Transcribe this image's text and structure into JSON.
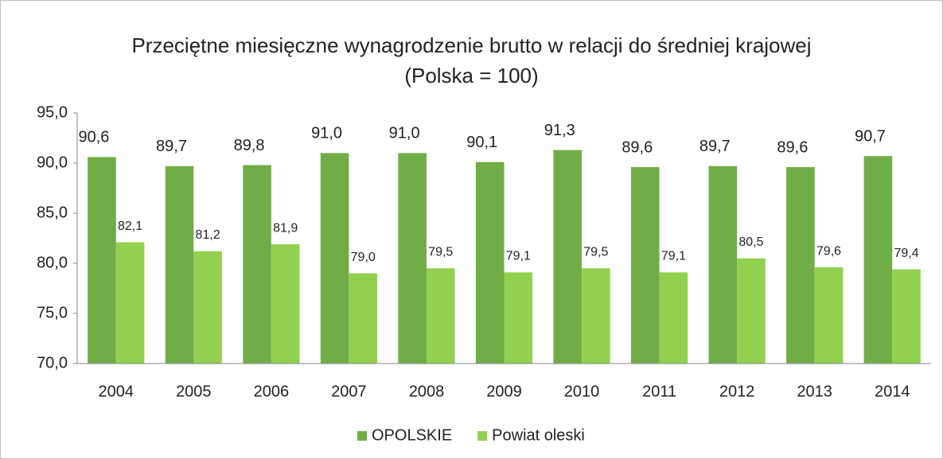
{
  "chart_data": {
    "type": "bar",
    "title": "Przeciętne miesięczne wynagrodzenie brutto w relacji do średniej krajowej (Polska = 100)",
    "categories": [
      "2004",
      "2005",
      "2006",
      "2007",
      "2008",
      "2009",
      "2010",
      "2011",
      "2012",
      "2013",
      "2014"
    ],
    "series": [
      {
        "name": "OPOLSKIE",
        "color": "#70ad47",
        "values": [
          90.6,
          89.7,
          89.8,
          91.0,
          91.0,
          90.1,
          91.3,
          89.6,
          89.7,
          89.6,
          90.7
        ],
        "value_labels": [
          "90,6",
          "89,7",
          "89,8",
          "91,0",
          "91,0",
          "90,1",
          "91,3",
          "89,6",
          "89,7",
          "89,6",
          "90,7"
        ]
      },
      {
        "name": "Powiat oleski",
        "color": "#92d050",
        "values": [
          82.1,
          81.2,
          81.9,
          79.0,
          79.5,
          79.1,
          79.5,
          79.1,
          80.5,
          79.6,
          79.4
        ],
        "value_labels": [
          "82,1",
          "81,2",
          "81,9",
          "79,0",
          "79,5",
          "79,1",
          "79,5",
          "79,1",
          "80,5",
          "79,6",
          "79,4"
        ]
      }
    ],
    "ylim": [
      70,
      95
    ],
    "yticks": [
      {
        "value": 70,
        "label": "70,0"
      },
      {
        "value": 75,
        "label": "75,0"
      },
      {
        "value": 80,
        "label": "80,0"
      },
      {
        "value": 85,
        "label": "85,0"
      },
      {
        "value": 90,
        "label": "90,0"
      },
      {
        "value": 95,
        "label": "95,0"
      }
    ],
    "grid": false,
    "legend": "bottom"
  }
}
